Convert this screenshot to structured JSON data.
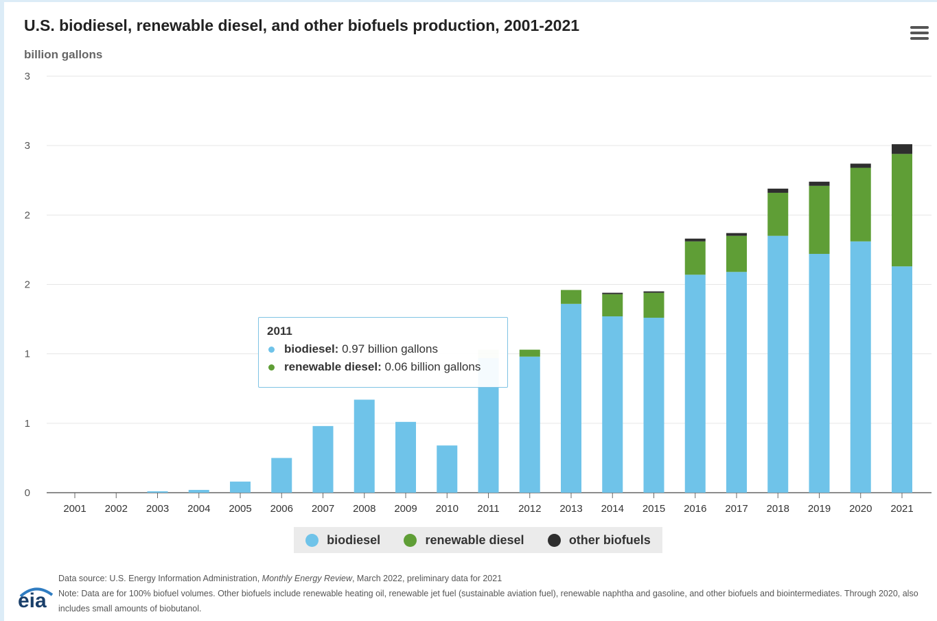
{
  "title": "U.S. biodiesel, renewable diesel, and other biofuels production, 2001-2021",
  "menu_icon": "hamburger-menu-icon",
  "chart_data": {
    "type": "bar",
    "stacked": true,
    "title": "U.S. biodiesel, renewable diesel, and other biofuels production, 2001-2021",
    "ylabel": "billion gallons",
    "xlabel": "",
    "ylim": [
      0,
      3
    ],
    "y_tick_labels": [
      "0",
      "1",
      "1",
      "2",
      "2",
      "3",
      "3"
    ],
    "y_tick_values": [
      0,
      0.5,
      1.0,
      1.5,
      2.0,
      2.5,
      3.0
    ],
    "grid": true,
    "legend_position": "bottom",
    "categories": [
      "2001",
      "2002",
      "2003",
      "2004",
      "2005",
      "2006",
      "2007",
      "2008",
      "2009",
      "2010",
      "2011",
      "2012",
      "2013",
      "2014",
      "2015",
      "2016",
      "2017",
      "2018",
      "2019",
      "2020",
      "2021"
    ],
    "series": [
      {
        "name": "biodiesel",
        "color": "#6fc3e9",
        "values": [
          0.0,
          0.0,
          0.01,
          0.02,
          0.08,
          0.25,
          0.48,
          0.67,
          0.51,
          0.34,
          0.97,
          0.98,
          1.36,
          1.27,
          1.26,
          1.57,
          1.59,
          1.85,
          1.72,
          1.81,
          1.63
        ]
      },
      {
        "name": "renewable diesel",
        "color": "#5f9e36",
        "values": [
          0.0,
          0.0,
          0.0,
          0.0,
          0.0,
          0.0,
          0.0,
          0.0,
          0.0,
          0.0,
          0.06,
          0.05,
          0.1,
          0.16,
          0.18,
          0.24,
          0.26,
          0.31,
          0.49,
          0.53,
          0.81
        ]
      },
      {
        "name": "other biofuels",
        "color": "#2e2e2e",
        "values": [
          0.0,
          0.0,
          0.0,
          0.0,
          0.0,
          0.0,
          0.0,
          0.0,
          0.0,
          0.0,
          0.0,
          0.0,
          0.0,
          0.01,
          0.01,
          0.02,
          0.02,
          0.03,
          0.03,
          0.03,
          0.07
        ]
      }
    ]
  },
  "legend": [
    {
      "label": "biodiesel",
      "color": "#6fc3e9"
    },
    {
      "label": "renewable diesel",
      "color": "#5f9e36"
    },
    {
      "label": "other biofuels",
      "color": "#2e2e2e"
    }
  ],
  "tooltip": {
    "year": "2011",
    "rows": [
      {
        "name": "biodiesel:",
        "value": "0.97 billion gallons",
        "color": "#6fc3e9"
      },
      {
        "name": "renewable diesel:",
        "value": "0.06 billion gallons",
        "color": "#5f9e36"
      }
    ]
  },
  "footer": {
    "source_prefix": "Data source: U.S. Energy Information Administration, ",
    "source_italic": "Monthly Energy Review",
    "source_suffix": ", March 2022, preliminary data for 2021",
    "note": "Note: Data are for 100% biofuel volumes. Other biofuels include renewable heating oil, renewable jet fuel (sustainable aviation fuel), renewable naphtha and gasoline, and other biofuels and biointermediates. Through 2020, also includes small amounts of biobutanol."
  },
  "logo": {
    "text": "eia",
    "icon": "eia-logo-icon"
  }
}
